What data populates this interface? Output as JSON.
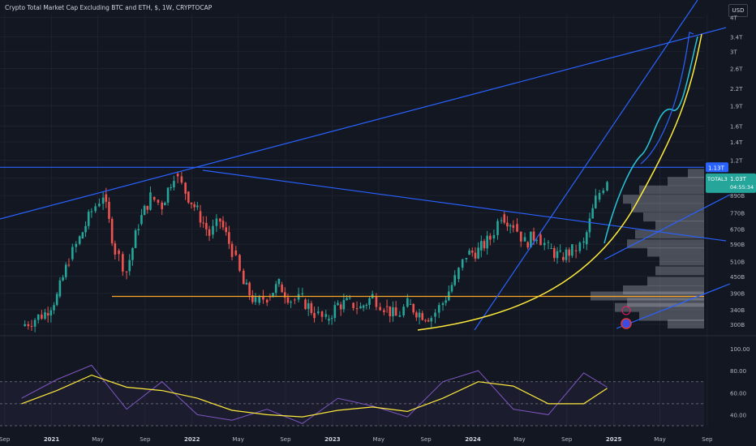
{
  "header": {
    "title": "Crypto Total Market Cap Excluding BTC and ETH, $, 1W, CRYPTOCAP",
    "currency": "USD"
  },
  "chart_data": [
    {
      "type": "line",
      "title": "Crypto Total Market Cap Excluding BTC and ETH, $, 1W, CRYPTOCAP",
      "scale": "log",
      "ylim": [
        290,
        4100
      ],
      "y_unit": "B",
      "y_ticks": [
        "4T",
        "3.4T",
        "3T",
        "2.6T",
        "2.2T",
        "1.9T",
        "1.6T",
        "1.4T",
        "1.2T",
        "1.03T",
        "890B",
        "770B",
        "670B",
        "590B",
        "510B",
        "450B",
        "390B",
        "340B",
        "300B"
      ],
      "x_ticks": [
        "May",
        "Sep",
        "2021",
        "May",
        "Sep",
        "2022",
        "May",
        "Sep",
        "2023",
        "May",
        "Sep",
        "2024",
        "May",
        "Sep",
        "2025",
        "May",
        "Sep"
      ],
      "series": [
        {
          "name": "TOTAL3",
          "type": "candlestick (approximate weekly closes)",
          "x": [
            "2020-10",
            "2020-12",
            "2021-01",
            "2021-02",
            "2021-03",
            "2021-04",
            "2021-05",
            "2021-06",
            "2021-07",
            "2021-08",
            "2021-09",
            "2021-10",
            "2021-11",
            "2021-12",
            "2022-01",
            "2022-02",
            "2022-03",
            "2022-04",
            "2022-05",
            "2022-06",
            "2022-07",
            "2022-08",
            "2022-09",
            "2022-10",
            "2022-11",
            "2022-12",
            "2023-01",
            "2023-02",
            "2023-03",
            "2023-04",
            "2023-05",
            "2023-06",
            "2023-07",
            "2023-08",
            "2023-09",
            "2023-10",
            "2023-11",
            "2023-12",
            "2024-01",
            "2024-02",
            "2024-03",
            "2024-04",
            "2024-05",
            "2024-06",
            "2024-07",
            "2024-08",
            "2024-09",
            "2024-10",
            "2024-11",
            "2024-12"
          ],
          "values": [
            296,
            330,
            380,
            520,
            620,
            780,
            900,
            560,
            470,
            700,
            880,
            820,
            1070,
            920,
            780,
            640,
            720,
            560,
            420,
            360,
            380,
            420,
            370,
            370,
            330,
            310,
            355,
            360,
            345,
            380,
            350,
            320,
            355,
            330,
            320,
            360,
            440,
            540,
            560,
            620,
            760,
            700,
            600,
            640,
            570,
            530,
            560,
            590,
            860,
            1030
          ]
        }
      ],
      "last_price": "1.03T",
      "last_label": "TOTAL3",
      "countdown": "04:55:34",
      "level_label": "1.13T",
      "annotations": [
        {
          "type": "horizontal line",
          "color": "#2962ff",
          "value": 1130
        },
        {
          "type": "horizontal line",
          "color": "#ffa726",
          "value": 380
        },
        {
          "type": "trend line",
          "color": "#2962ff"
        },
        {
          "type": "parabolic curve",
          "color": "#ffeb3b"
        },
        {
          "type": "projected path",
          "color": "#26c6da"
        },
        {
          "type": "volume profile",
          "color": "#b2b5be"
        }
      ]
    },
    {
      "type": "line",
      "title": "",
      "ylim": [
        30,
        100
      ],
      "y_ticks": [
        "100.00",
        "80.00",
        "60.00",
        "40.00"
      ],
      "overbought": 70,
      "oversold": 30,
      "series": [
        {
          "name": "",
          "color": "#7e57c2",
          "x": [
            "2020-10",
            "2021-01",
            "2021-04",
            "2021-07",
            "2021-10",
            "2022-01",
            "2022-04",
            "2022-07",
            "2022-10",
            "2023-01",
            "2023-04",
            "2023-07",
            "2023-10",
            "2024-01",
            "2024-04",
            "2024-07",
            "2024-10",
            "2024-12"
          ],
          "values": [
            55,
            72,
            85,
            45,
            70,
            40,
            35,
            45,
            32,
            55,
            48,
            38,
            70,
            80,
            45,
            40,
            78,
            65
          ]
        },
        {
          "name": "",
          "color": "#ffeb3b",
          "x": [
            "2020-10",
            "2021-01",
            "2021-04",
            "2021-07",
            "2021-10",
            "2022-01",
            "2022-04",
            "2022-07",
            "2022-10",
            "2023-01",
            "2023-04",
            "2023-07",
            "2023-10",
            "2024-01",
            "2024-04",
            "2024-07",
            "2024-10",
            "2024-12"
          ],
          "values": [
            50,
            62,
            76,
            65,
            62,
            55,
            44,
            40,
            38,
            44,
            47,
            43,
            55,
            70,
            66,
            50,
            50,
            64
          ]
        }
      ]
    }
  ],
  "colors": {
    "background": "#131722",
    "up": "#26a69a",
    "down": "#ef5350",
    "blue": "#2962ff",
    "yellow": "#ffeb3b",
    "orange": "#ffa726",
    "cyan": "#26c6da"
  }
}
